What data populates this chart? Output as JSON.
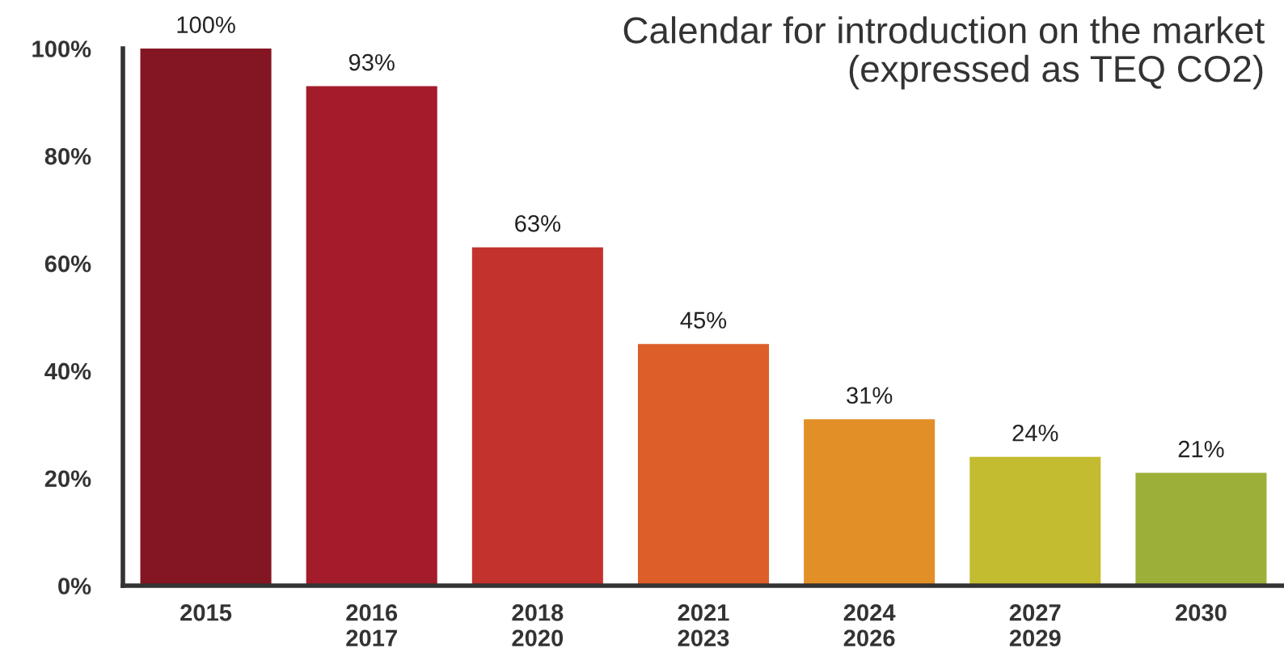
{
  "chart_data": {
    "type": "bar",
    "title": "Calendar for introduction on the market\n(expressed as TEQ CO2)",
    "categories": [
      "2015",
      "2016\n2017",
      "2018\n2020",
      "2021\n2023",
      "2024\n2026",
      "2027\n2029",
      "2030"
    ],
    "values": [
      100,
      93,
      63,
      45,
      31,
      24,
      21
    ],
    "colors": [
      "#841522",
      "#a41c2b",
      "#c3322d",
      "#dc5e28",
      "#e38f27",
      "#c3bc30",
      "#9caf38"
    ],
    "value_labels": [
      "100%",
      "93%",
      "63%",
      "45%",
      "31%",
      "24%",
      "21%"
    ],
    "ylim": [
      0,
      100
    ],
    "yticks": [
      {
        "value": 0,
        "label": "0%"
      },
      {
        "value": 20,
        "label": "20%"
      },
      {
        "value": 40,
        "label": "40%"
      },
      {
        "value": 60,
        "label": "60%"
      },
      {
        "value": 80,
        "label": "80%"
      },
      {
        "value": 100,
        "label": "100%"
      }
    ],
    "grid": false,
    "legend": false
  }
}
